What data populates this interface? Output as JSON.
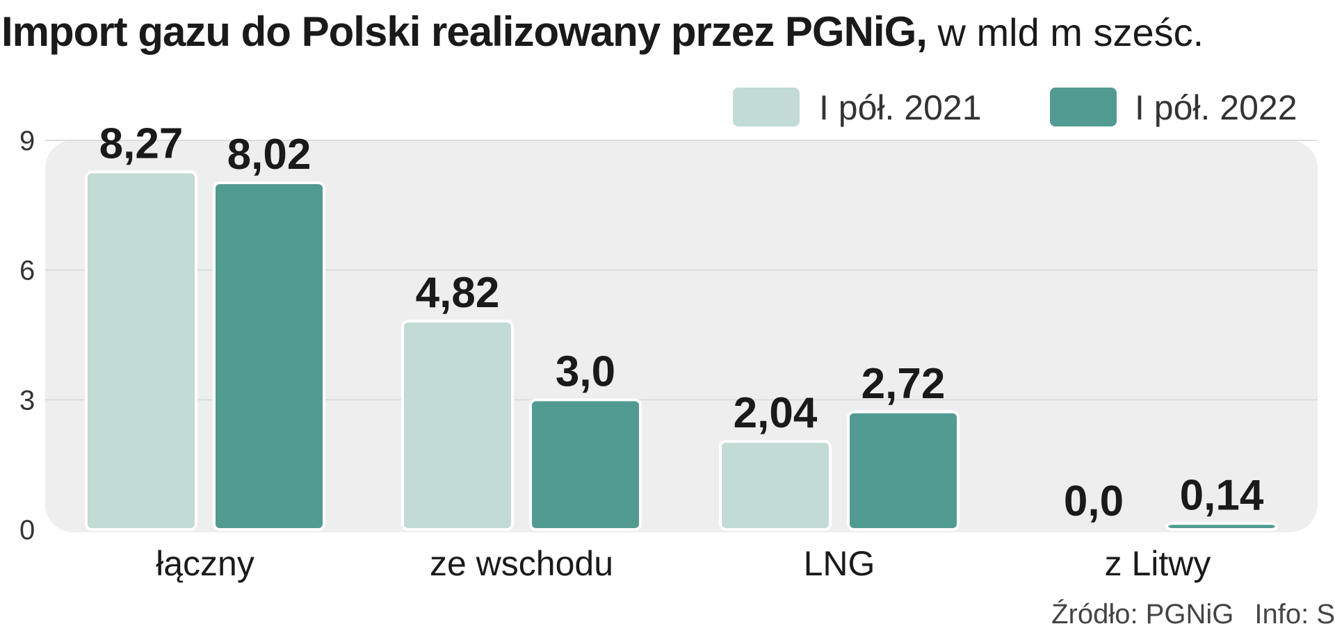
{
  "title": {
    "main": "Import gazu do Polski realizowany przez PGNiG,",
    "unit": " w mld m sześc."
  },
  "source": {
    "text": "Źródło: PGNiG",
    "info": "Info: S"
  },
  "colors": {
    "series_2021": "#c2dbd4",
    "series_2022": "#519b90",
    "plot_bg": "#eeeeee",
    "grid": "#dcdcdc"
  },
  "chart_data": {
    "type": "bar",
    "title": "Import gazu do Polski realizowany przez PGNiG, w mld m sześc.",
    "categories": [
      "łączny",
      "ze wschodu",
      "LNG",
      "z Litwy"
    ],
    "series": [
      {
        "name": "I pół. 2021",
        "values": [
          8.27,
          4.82,
          2.04,
          0.0
        ],
        "labels": [
          "8,27",
          "4,82",
          "2,04",
          "0,0"
        ]
      },
      {
        "name": "I pół. 2022",
        "values": [
          8.02,
          3.0,
          2.72,
          0.14
        ],
        "labels": [
          "8,02",
          "3,0",
          "2,72",
          "0,14"
        ]
      }
    ],
    "yticks": [
      0,
      3,
      6,
      9
    ],
    "ylim": [
      0,
      9
    ],
    "grid": true,
    "legend": "top-right"
  }
}
